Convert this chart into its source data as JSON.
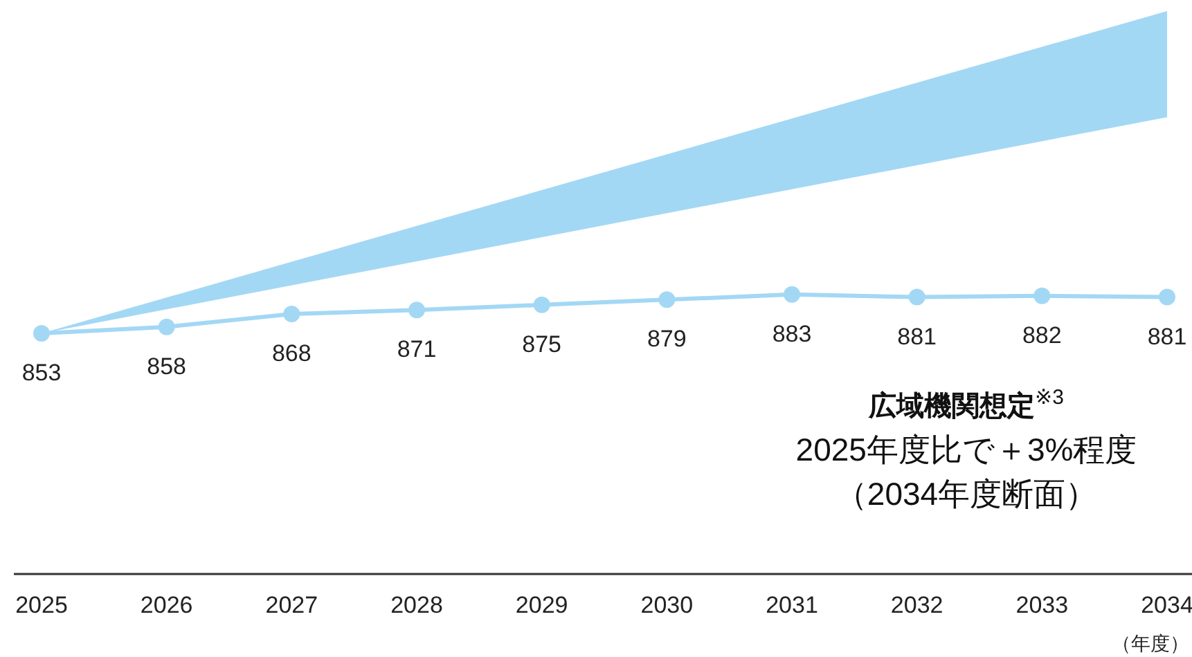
{
  "chart_data": {
    "type": "line",
    "xlabel": "（年度）",
    "categories": [
      "2025",
      "2026",
      "2027",
      "2028",
      "2029",
      "2030",
      "2031",
      "2032",
      "2033",
      "2034"
    ],
    "data_labels": true,
    "marker": "circle",
    "line_style": "solid",
    "tick_labels": "x",
    "series": [
      {
        "type": "area",
        "color": "#a3d8f5",
        "values": [
          null,
          null,
          null,
          null,
          null,
          null,
          null,
          null,
          null,
          null
        ],
        "lower": [
          853,
          null,
          null,
          null,
          null,
          null,
          null,
          null,
          null,
          1020
        ],
        "upper": [
          853,
          null,
          null,
          null,
          null,
          null,
          null,
          null,
          null,
          1102
        ]
      },
      {
        "color": "#a3d8f5",
        "values": [
          853,
          858,
          868,
          871,
          875,
          879,
          883,
          881,
          882,
          881
        ]
      }
    ],
    "annotations": [
      "広域機関想定$^{※3}$",
      "2025年度比で＋3%程度",
      "（2034年度断面）"
    ]
  }
}
